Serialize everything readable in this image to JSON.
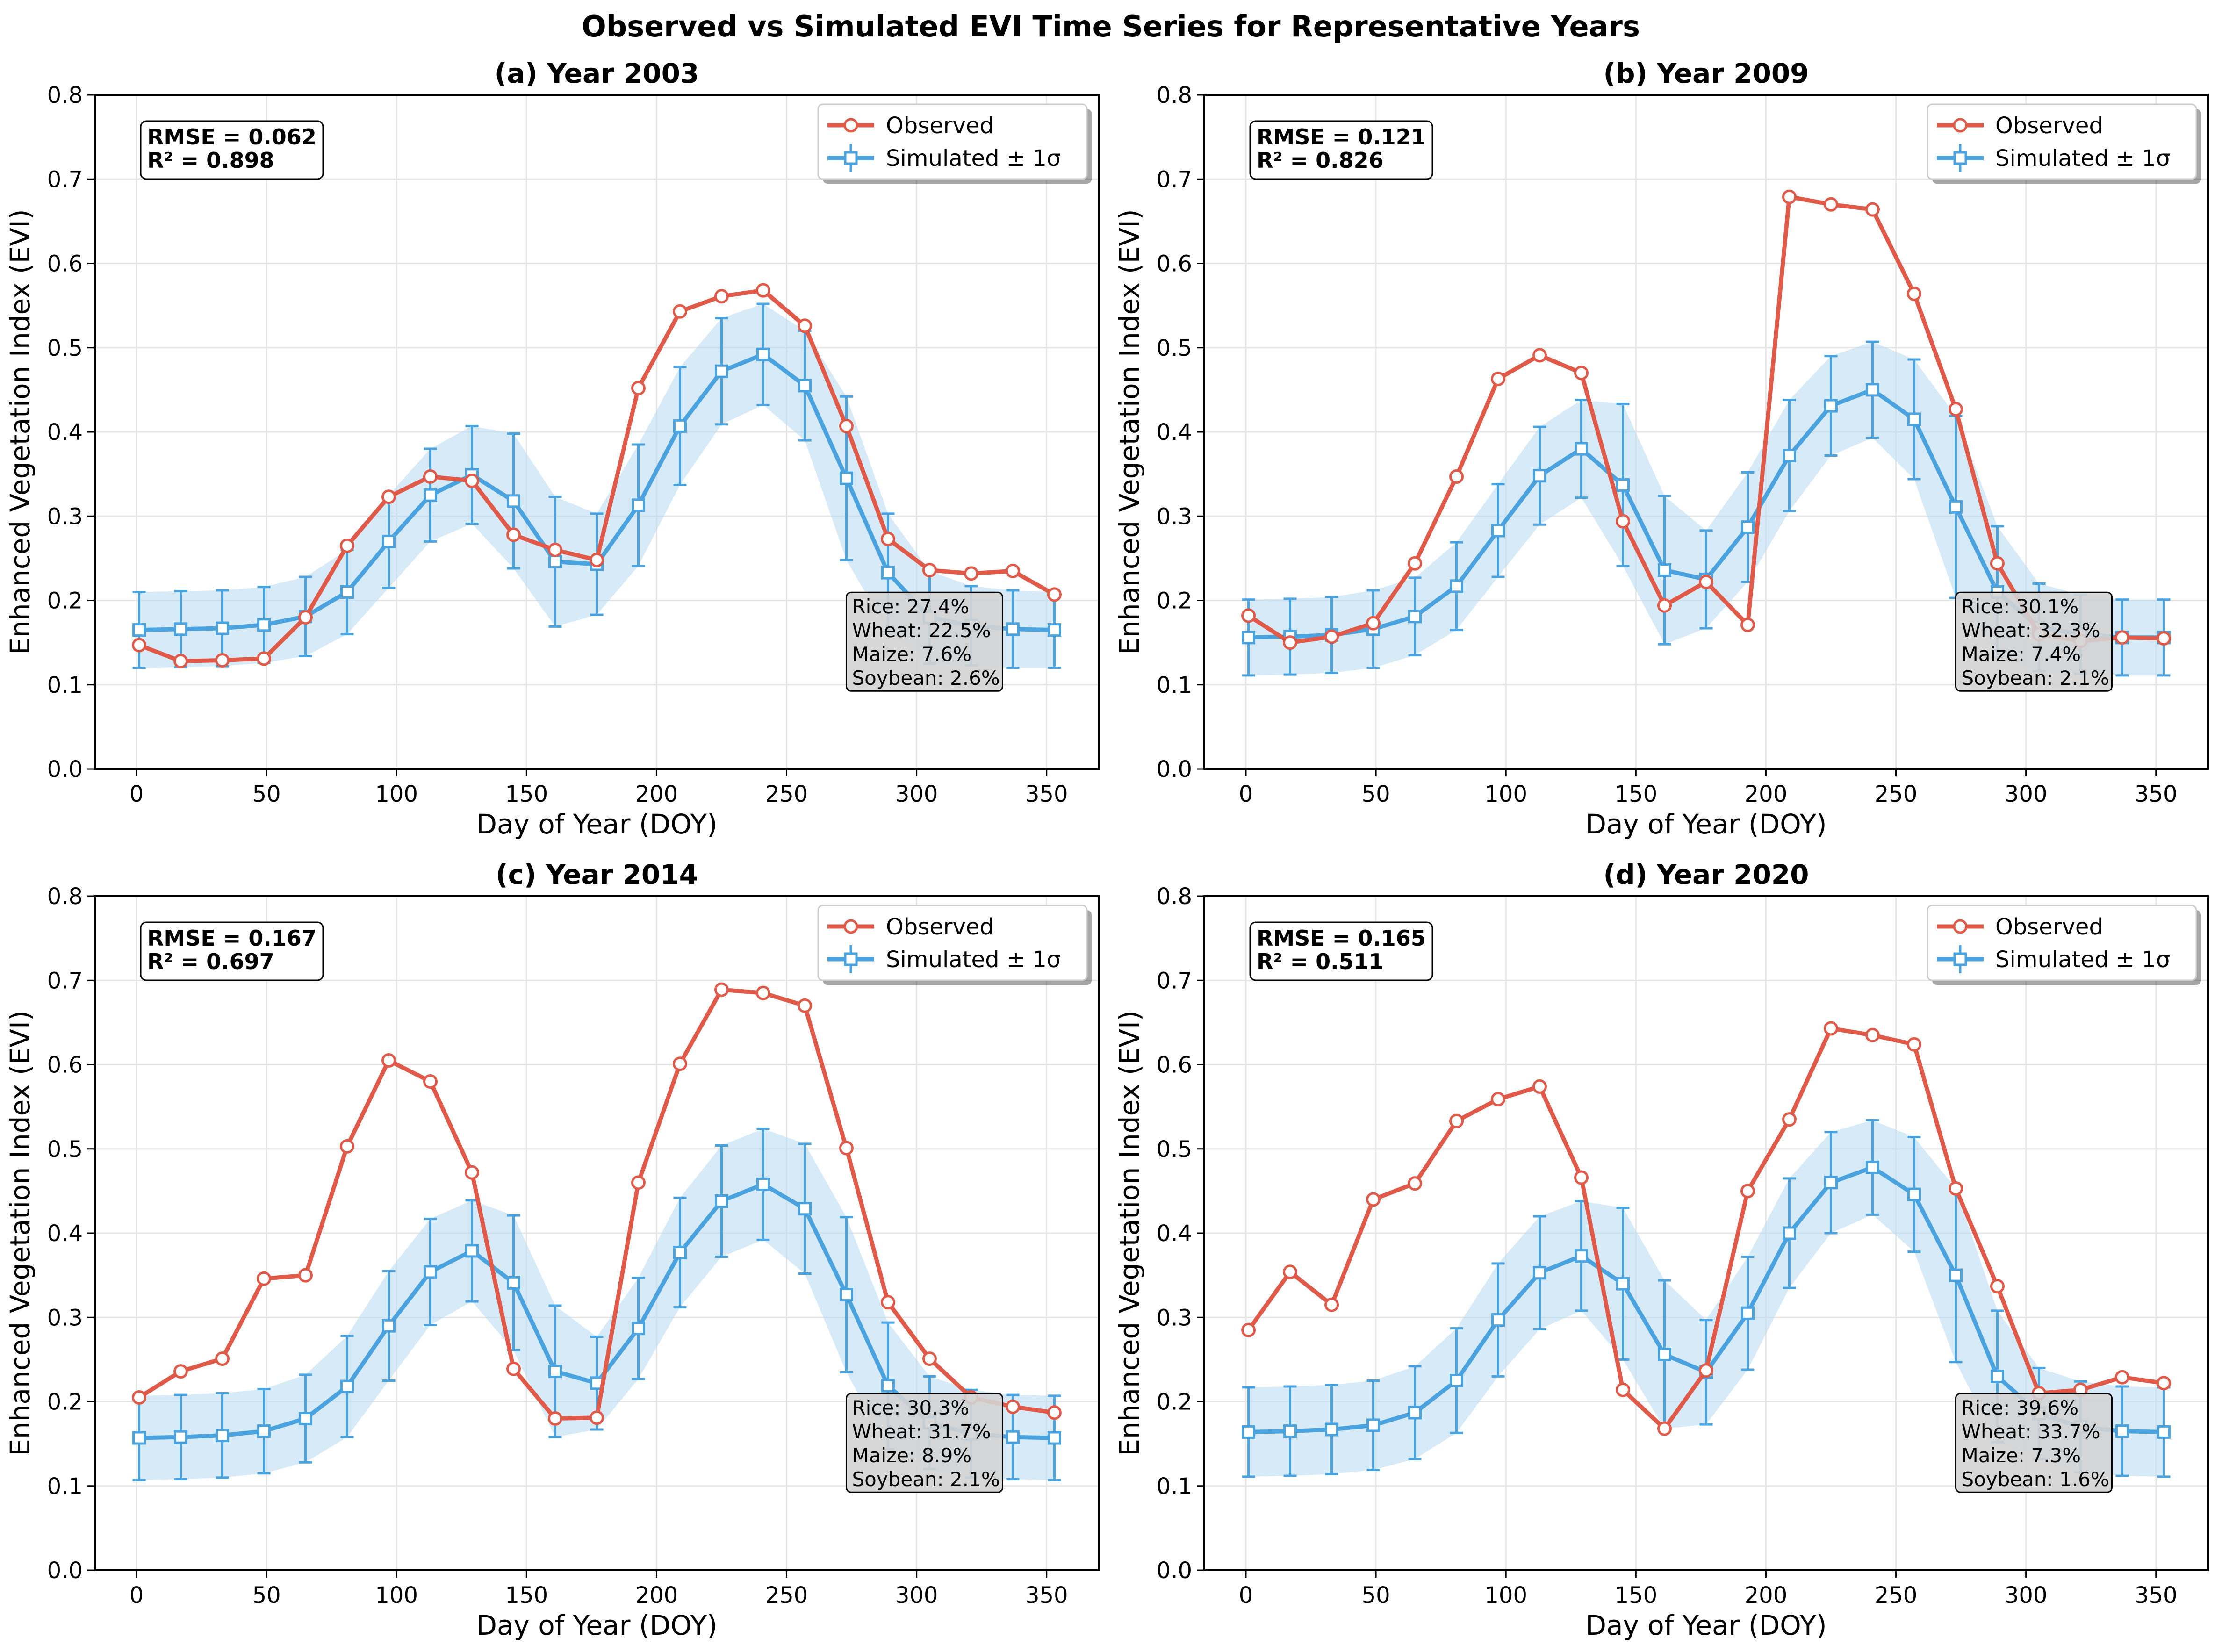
{
  "title": "Observed vs Simulated EVI Time Series for Representative Years",
  "colors": {
    "observed": "#e05a4a",
    "simulated": "#4aa3df",
    "band": "#bcdcf3",
    "grid": "#e6e6e6",
    "crop_box": "#d3d3d3"
  },
  "legend": {
    "observed": "Observed",
    "simulated": "Simulated ± 1σ"
  },
  "chart_data": [
    {
      "type": "line",
      "title": "(a) Year 2003",
      "xlabel": "Day of Year (DOY)",
      "ylabel": "Enhanced Vegetation Index (EVI)",
      "xlim": [
        -16,
        370
      ],
      "ylim": [
        0.0,
        0.8
      ],
      "xticks": [
        "0",
        "50",
        "100",
        "150",
        "200",
        "250",
        "300",
        "350"
      ],
      "yticks": [
        "0.0",
        "0.1",
        "0.2",
        "0.3",
        "0.4",
        "0.5",
        "0.6",
        "0.7",
        "0.8"
      ],
      "grid": true,
      "legend_position": "upper right",
      "stats": [
        "RMSE = 0.062",
        "R² = 0.898"
      ],
      "crops": [
        "Rice: 27.4%",
        "Wheat: 22.5%",
        "Maize: 7.6%",
        "Soybean: 2.6%"
      ],
      "x": [
        1,
        17,
        33,
        49,
        65,
        81,
        97,
        113,
        129,
        145,
        161,
        177,
        193,
        209,
        225,
        241,
        257,
        273,
        289,
        305,
        321,
        337,
        353
      ],
      "series": [
        {
          "name": "Observed",
          "values": [
            0.147,
            0.128,
            0.129,
            0.131,
            0.18,
            0.265,
            0.323,
            0.347,
            0.342,
            0.278,
            0.26,
            0.248,
            0.452,
            0.543,
            0.561,
            0.568,
            0.526,
            0.407,
            0.273,
            0.236,
            0.232,
            0.235,
            0.207
          ]
        },
        {
          "name": "Simulated ± 1σ",
          "values": [
            0.165,
            0.166,
            0.167,
            0.171,
            0.181,
            0.21,
            0.27,
            0.325,
            0.349,
            0.318,
            0.246,
            0.243,
            0.313,
            0.407,
            0.472,
            0.492,
            0.455,
            0.345,
            0.233,
            0.18,
            0.17,
            0.166,
            0.165
          ],
          "std": [
            0.045,
            0.045,
            0.045,
            0.045,
            0.047,
            0.05,
            0.055,
            0.055,
            0.058,
            0.08,
            0.077,
            0.06,
            0.072,
            0.07,
            0.063,
            0.06,
            0.065,
            0.097,
            0.07,
            0.055,
            0.047,
            0.046,
            0.045
          ]
        }
      ]
    },
    {
      "type": "line",
      "title": "(b) Year 2009",
      "xlabel": "Day of Year (DOY)",
      "ylabel": "Enhanced Vegetation Index (EVI)",
      "xlim": [
        -16,
        370
      ],
      "ylim": [
        0.0,
        0.8
      ],
      "xticks": [
        "0",
        "50",
        "100",
        "150",
        "200",
        "250",
        "300",
        "350"
      ],
      "yticks": [
        "0.0",
        "0.1",
        "0.2",
        "0.3",
        "0.4",
        "0.5",
        "0.6",
        "0.7",
        "0.8"
      ],
      "grid": true,
      "legend_position": "upper right",
      "stats": [
        "RMSE = 0.121",
        "R² = 0.826"
      ],
      "crops": [
        "Rice: 30.1%",
        "Wheat: 32.3%",
        "Maize: 7.4%",
        "Soybean: 2.1%"
      ],
      "x": [
        1,
        17,
        33,
        49,
        65,
        81,
        97,
        113,
        129,
        145,
        161,
        177,
        193,
        209,
        225,
        241,
        257,
        273,
        289,
        305,
        321,
        337,
        353
      ],
      "series": [
        {
          "name": "Observed",
          "values": [
            0.182,
            0.15,
            0.157,
            0.173,
            0.244,
            0.347,
            0.463,
            0.491,
            0.47,
            0.294,
            0.194,
            0.222,
            0.171,
            0.679,
            0.67,
            0.664,
            0.564,
            0.427,
            0.244,
            0.16,
            0.152,
            0.156,
            0.155
          ]
        },
        {
          "name": "Simulated ± 1σ",
          "values": [
            0.156,
            0.157,
            0.159,
            0.166,
            0.181,
            0.217,
            0.283,
            0.348,
            0.38,
            0.337,
            0.236,
            0.225,
            0.287,
            0.372,
            0.431,
            0.45,
            0.415,
            0.311,
            0.21,
            0.168,
            0.16,
            0.156,
            0.156
          ],
          "std": [
            0.045,
            0.045,
            0.045,
            0.046,
            0.046,
            0.052,
            0.055,
            0.058,
            0.058,
            0.096,
            0.088,
            0.058,
            0.065,
            0.066,
            0.059,
            0.057,
            0.071,
            0.108,
            0.078,
            0.052,
            0.047,
            0.045,
            0.045
          ]
        }
      ]
    },
    {
      "type": "line",
      "title": "(c) Year 2014",
      "xlabel": "Day of Year (DOY)",
      "ylabel": "Enhanced Vegetation Index (EVI)",
      "xlim": [
        -16,
        370
      ],
      "ylim": [
        0.0,
        0.8
      ],
      "xticks": [
        "0",
        "50",
        "100",
        "150",
        "200",
        "250",
        "300",
        "350"
      ],
      "yticks": [
        "0.0",
        "0.1",
        "0.2",
        "0.3",
        "0.4",
        "0.5",
        "0.6",
        "0.7",
        "0.8"
      ],
      "grid": true,
      "legend_position": "upper right",
      "stats": [
        "RMSE = 0.167",
        "R² = 0.697"
      ],
      "crops": [
        "Rice: 30.3%",
        "Wheat: 31.7%",
        "Maize: 8.9%",
        "Soybean: 2.1%"
      ],
      "x": [
        1,
        17,
        33,
        49,
        65,
        81,
        97,
        113,
        129,
        145,
        161,
        177,
        193,
        209,
        225,
        241,
        257,
        273,
        289,
        305,
        321,
        337,
        353
      ],
      "series": [
        {
          "name": "Observed",
          "values": [
            0.205,
            0.236,
            0.251,
            0.346,
            0.35,
            0.503,
            0.605,
            0.58,
            0.472,
            0.239,
            0.18,
            0.181,
            0.46,
            0.601,
            0.689,
            0.685,
            0.67,
            0.501,
            0.318,
            0.251,
            0.205,
            0.194,
            0.187
          ]
        },
        {
          "name": "Simulated ± 1σ",
          "values": [
            0.157,
            0.158,
            0.16,
            0.165,
            0.18,
            0.218,
            0.29,
            0.354,
            0.379,
            0.341,
            0.236,
            0.222,
            0.287,
            0.377,
            0.438,
            0.458,
            0.429,
            0.327,
            0.219,
            0.175,
            0.162,
            0.158,
            0.157
          ],
          "std": [
            0.05,
            0.05,
            0.05,
            0.05,
            0.052,
            0.06,
            0.065,
            0.063,
            0.06,
            0.08,
            0.078,
            0.055,
            0.06,
            0.065,
            0.066,
            0.066,
            0.077,
            0.092,
            0.075,
            0.055,
            0.052,
            0.05,
            0.05
          ]
        }
      ]
    },
    {
      "type": "line",
      "title": "(d) Year 2020",
      "xlabel": "Day of Year (DOY)",
      "ylabel": "Enhanced Vegetation Index (EVI)",
      "xlim": [
        -16,
        370
      ],
      "ylim": [
        0.0,
        0.8
      ],
      "xticks": [
        "0",
        "50",
        "100",
        "150",
        "200",
        "250",
        "300",
        "350"
      ],
      "yticks": [
        "0.0",
        "0.1",
        "0.2",
        "0.3",
        "0.4",
        "0.5",
        "0.6",
        "0.7",
        "0.8"
      ],
      "grid": true,
      "legend_position": "upper right",
      "stats": [
        "RMSE = 0.165",
        "R² = 0.511"
      ],
      "crops": [
        "Rice: 39.6%",
        "Wheat: 33.7%",
        "Maize: 7.3%",
        "Soybean: 1.6%"
      ],
      "x": [
        1,
        17,
        33,
        49,
        65,
        81,
        97,
        113,
        129,
        145,
        161,
        177,
        193,
        209,
        225,
        241,
        257,
        273,
        289,
        305,
        321,
        337,
        353
      ],
      "series": [
        {
          "name": "Observed",
          "values": [
            0.285,
            0.354,
            0.315,
            0.44,
            0.459,
            0.533,
            0.559,
            0.574,
            0.466,
            0.214,
            0.168,
            0.237,
            0.45,
            0.535,
            0.643,
            0.635,
            0.624,
            0.453,
            0.337,
            0.21,
            0.214,
            0.229,
            0.222
          ]
        },
        {
          "name": "Simulated ± 1σ",
          "values": [
            0.164,
            0.165,
            0.167,
            0.172,
            0.187,
            0.225,
            0.297,
            0.353,
            0.373,
            0.34,
            0.256,
            0.235,
            0.305,
            0.4,
            0.46,
            0.478,
            0.446,
            0.35,
            0.23,
            0.186,
            0.17,
            0.165,
            0.164
          ],
          "std": [
            0.053,
            0.053,
            0.053,
            0.053,
            0.055,
            0.062,
            0.067,
            0.067,
            0.065,
            0.09,
            0.088,
            0.062,
            0.067,
            0.065,
            0.06,
            0.056,
            0.068,
            0.103,
            0.078,
            0.054,
            0.054,
            0.053,
            0.053
          ]
        }
      ]
    }
  ]
}
